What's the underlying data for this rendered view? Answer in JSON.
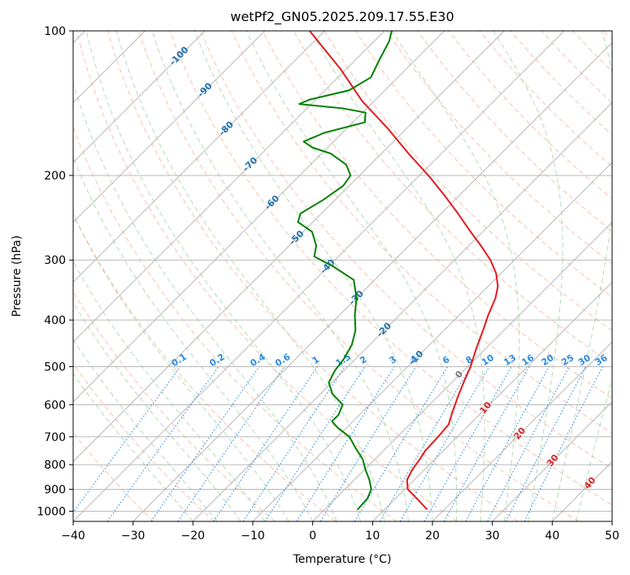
{
  "chart_data": {
    "type": "skew-t log-p",
    "title": "wetPf2_GN05.2025.209.17.55.E30",
    "xlabel": "Temperature (°C)",
    "ylabel": "Pressure (hPa)",
    "xlim": [
      -40,
      50
    ],
    "ylim": [
      1050,
      100
    ],
    "y_scale": "log",
    "grid": true,
    "x_ticks": [
      -40,
      -30,
      -20,
      -10,
      0,
      10,
      20,
      30,
      40,
      50
    ],
    "y_ticks": [
      100,
      200,
      300,
      400,
      500,
      600,
      700,
      800,
      900,
      1000
    ],
    "skewed_isotherm_labels": [
      {
        "text": "-100",
        "p": 113
      },
      {
        "text": "-90",
        "p": 133
      },
      {
        "text": "-80",
        "p": 160
      },
      {
        "text": "-70",
        "p": 190
      },
      {
        "text": "-60",
        "p": 228
      },
      {
        "text": "-50",
        "p": 270
      },
      {
        "text": "-40",
        "p": 310
      },
      {
        "text": "-30",
        "p": 360
      },
      {
        "text": "-20",
        "p": 420
      },
      {
        "text": "-10",
        "p": 480
      }
    ],
    "mixing_ratio_labels": [
      "0.1",
      "0.2",
      "0.4",
      "0.6",
      "1",
      "1.5",
      "2",
      "3",
      "4",
      "6",
      "8",
      "10",
      "13",
      "16",
      "20",
      "25",
      "30",
      "36"
    ],
    "moist_adiabat_labels": [
      {
        "text": "0",
        "p": 520
      },
      {
        "text": "10",
        "p": 610
      },
      {
        "text": "20",
        "p": 690
      },
      {
        "text": "30",
        "p": 785
      },
      {
        "text": "40",
        "p": 875
      }
    ],
    "series": [
      {
        "color": "#e41a1c",
        "points": [
          {
            "p": 990,
            "t": 17.0
          },
          {
            "p": 940,
            "t": 13.5
          },
          {
            "p": 900,
            "t": 10.5
          },
          {
            "p": 860,
            "t": 8.8
          },
          {
            "p": 820,
            "t": 8.0
          },
          {
            "p": 780,
            "t": 7.5
          },
          {
            "p": 750,
            "t": 7.0
          },
          {
            "p": 700,
            "t": 6.8
          },
          {
            "p": 660,
            "t": 6.5
          },
          {
            "p": 620,
            "t": 5.0
          },
          {
            "p": 580,
            "t": 3.5
          },
          {
            "p": 540,
            "t": 2.0
          },
          {
            "p": 500,
            "t": 0.5
          },
          {
            "p": 460,
            "t": -1.5
          },
          {
            "p": 420,
            "t": -3.5
          },
          {
            "p": 390,
            "t": -5.2
          },
          {
            "p": 360,
            "t": -6.8
          },
          {
            "p": 340,
            "t": -8.4
          },
          {
            "p": 320,
            "t": -10.8
          },
          {
            "p": 300,
            "t": -14.0
          },
          {
            "p": 280,
            "t": -18.0
          },
          {
            "p": 260,
            "t": -22.5
          },
          {
            "p": 240,
            "t": -27.2
          },
          {
            "p": 220,
            "t": -32.5
          },
          {
            "p": 200,
            "t": -38.5
          },
          {
            "p": 180,
            "t": -45.5
          },
          {
            "p": 160,
            "t": -53.0
          },
          {
            "p": 140,
            "t": -62.0
          },
          {
            "p": 120,
            "t": -71.0
          },
          {
            "p": 110,
            "t": -76.5
          },
          {
            "p": 100,
            "t": -82.5
          }
        ]
      },
      {
        "color": "#008000",
        "points": [
          {
            "p": 990,
            "t": 5.5
          },
          {
            "p": 940,
            "t": 5.3
          },
          {
            "p": 900,
            "t": 4.4
          },
          {
            "p": 860,
            "t": 2.5
          },
          {
            "p": 820,
            "t": 0.2
          },
          {
            "p": 780,
            "t": -2.0
          },
          {
            "p": 740,
            "t": -5.0
          },
          {
            "p": 700,
            "t": -8.0
          },
          {
            "p": 670,
            "t": -11.5
          },
          {
            "p": 650,
            "t": -13.5
          },
          {
            "p": 630,
            "t": -13.5
          },
          {
            "p": 600,
            "t": -14.5
          },
          {
            "p": 570,
            "t": -18.0
          },
          {
            "p": 540,
            "t": -20.5
          },
          {
            "p": 510,
            "t": -21.5
          },
          {
            "p": 480,
            "t": -22.0
          },
          {
            "p": 450,
            "t": -23.0
          },
          {
            "p": 420,
            "t": -24.8
          },
          {
            "p": 390,
            "t": -27.5
          },
          {
            "p": 360,
            "t": -30.0
          },
          {
            "p": 330,
            "t": -33.5
          },
          {
            "p": 310,
            "t": -39.0
          },
          {
            "p": 295,
            "t": -44.0
          },
          {
            "p": 280,
            "t": -45.5
          },
          {
            "p": 262,
            "t": -48.5
          },
          {
            "p": 250,
            "t": -52.5
          },
          {
            "p": 240,
            "t": -53.5
          },
          {
            "p": 225,
            "t": -52.0
          },
          {
            "p": 210,
            "t": -51.0
          },
          {
            "p": 200,
            "t": -51.5
          },
          {
            "p": 190,
            "t": -54.0
          },
          {
            "p": 180,
            "t": -58.5
          },
          {
            "p": 175,
            "t": -62.5
          },
          {
            "p": 170,
            "t": -65.0
          },
          {
            "p": 163,
            "t": -63.0
          },
          {
            "p": 155,
            "t": -58.0
          },
          {
            "p": 148,
            "t": -59.5
          },
          {
            "p": 145,
            "t": -64.0
          },
          {
            "p": 142,
            "t": -72.0
          },
          {
            "p": 139,
            "t": -71.0
          },
          {
            "p": 133,
            "t": -66.0
          },
          {
            "p": 125,
            "t": -64.5
          },
          {
            "p": 115,
            "t": -66.0
          },
          {
            "p": 105,
            "t": -67.5
          },
          {
            "p": 100,
            "t": -68.8
          }
        ]
      }
    ]
  }
}
